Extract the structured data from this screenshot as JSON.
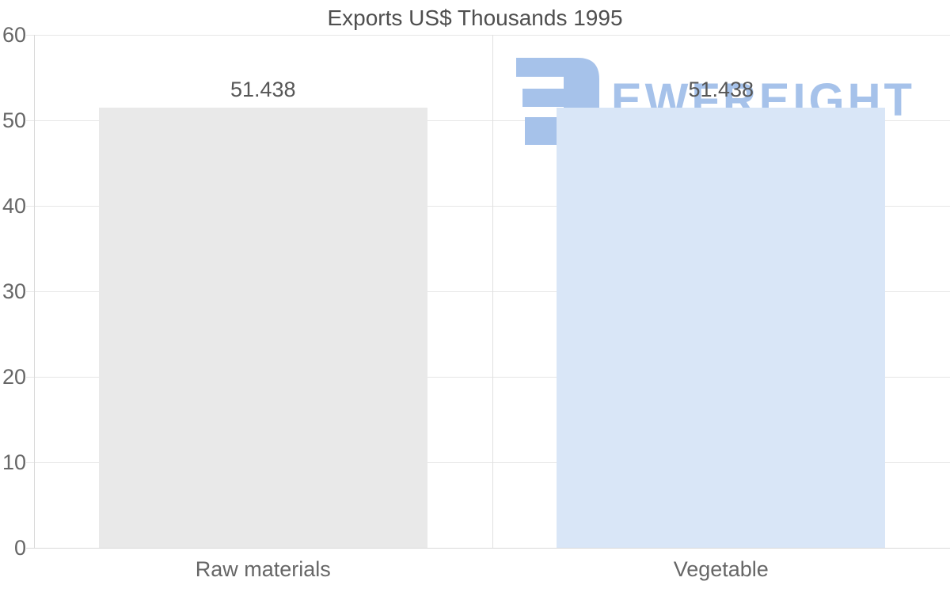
{
  "chart_data": {
    "type": "bar",
    "title": "Exports US$ Thousands 1995",
    "categories": [
      "Raw materials",
      "Vegetable"
    ],
    "values": [
      51.438,
      51.438
    ],
    "value_labels": [
      "51.438",
      "51.438"
    ],
    "series": [
      {
        "name": "Raw materials",
        "value": 51.438,
        "color": "#e9e9e9"
      },
      {
        "name": "Vegetable",
        "value": 51.438,
        "color": "#d9e6f7"
      }
    ],
    "bar_colors": [
      "#e9e9e9",
      "#d9e6f7"
    ],
    "xlabel": "",
    "ylabel": "",
    "ylim": [
      0,
      60
    ],
    "yticks": [
      0,
      10,
      20,
      30,
      40,
      50,
      60
    ],
    "grid": "on",
    "legend": "none"
  },
  "watermark": {
    "text": "EWFREIGHT",
    "color": "#a6c2ea"
  }
}
